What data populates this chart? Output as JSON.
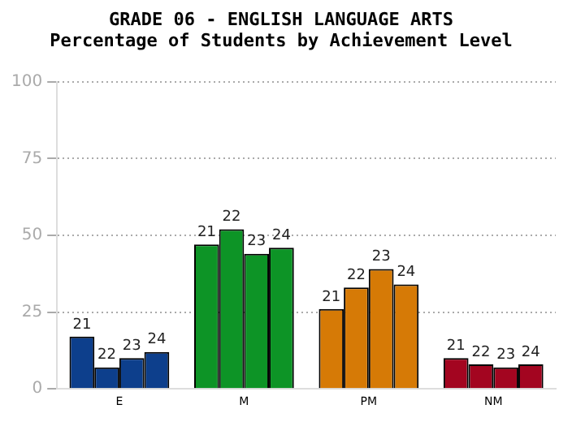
{
  "chart_data": {
    "type": "bar",
    "title": "GRADE 06 - ENGLISH LANGUAGE ARTS",
    "subtitle": "Percentage of Students by Achievement Level",
    "categories": [
      "E",
      "M",
      "PM",
      "NM"
    ],
    "series": [
      {
        "name": "21",
        "colors": [
          "#0d3f8c",
          "#0d9426",
          "#d67a06",
          "#a30520"
        ],
        "values": [
          17,
          47,
          26,
          10
        ]
      },
      {
        "name": "22",
        "colors": [
          "#0d3f8c",
          "#0d9426",
          "#d67a06",
          "#a30520"
        ],
        "values": [
          7,
          52,
          33,
          8
        ]
      },
      {
        "name": "23",
        "colors": [
          "#0d3f8c",
          "#0d9426",
          "#d67a06",
          "#a30520"
        ],
        "values": [
          10,
          44,
          39,
          7
        ]
      },
      {
        "name": "24",
        "colors": [
          "#0d3f8c",
          "#0d9426",
          "#d67a06",
          "#a30520"
        ],
        "values": [
          12,
          46,
          34,
          8
        ]
      }
    ],
    "ylim": [
      0,
      100
    ],
    "yticks": [
      0,
      25,
      50,
      75,
      100
    ],
    "grid": "y",
    "legend": false
  }
}
